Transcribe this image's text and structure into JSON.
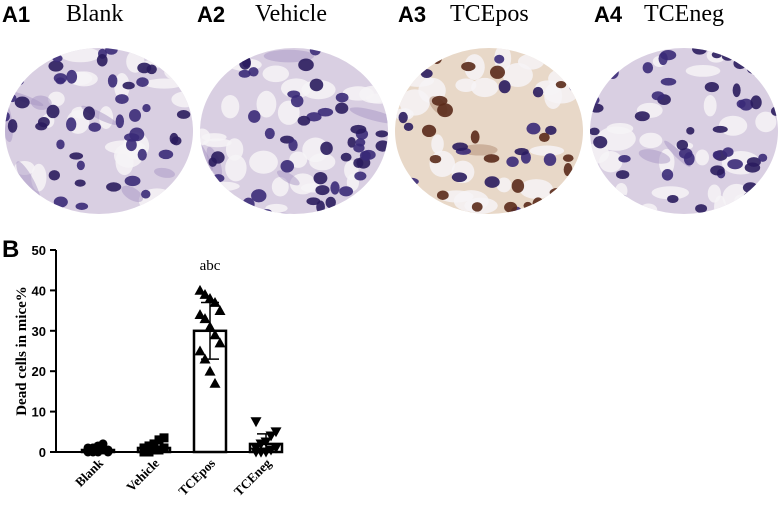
{
  "panels": [
    {
      "label": "A1",
      "title": "Blank",
      "stain": "light"
    },
    {
      "label": "A2",
      "title": "Vehicle",
      "stain": "light"
    },
    {
      "label": "A3",
      "title": "TCEpos",
      "stain": "brown"
    },
    {
      "label": "A4",
      "title": "TCEneg",
      "stain": "light"
    }
  ],
  "chart_label": "B",
  "colors": {
    "nucleus": "#3a2a78",
    "nucleus_dark": "#2a1c5e",
    "brown_stain": "#5a2a1a",
    "tissue": "#d9cfe2",
    "lumen": "#f6f3f6"
  },
  "chart_data": {
    "type": "bar",
    "categories": [
      "Blank",
      "Vehicle",
      "TCEpos",
      "TCEneg"
    ],
    "values": [
      0.5,
      1.0,
      30.0,
      2.0
    ],
    "errors": [
      0.6,
      1.2,
      7.0,
      2.5
    ],
    "ylabel": "Dead cells in mice%",
    "ylim": [
      0,
      50
    ],
    "yticks": [
      0,
      10,
      20,
      30,
      40,
      50
    ],
    "annotations": [
      {
        "category": "TCEpos",
        "text": "abc"
      }
    ],
    "points": {
      "Blank": [
        0,
        0,
        0,
        0.5,
        0.5,
        1,
        1,
        1.5,
        2,
        0,
        0.5,
        1
      ],
      "Vehicle": [
        0,
        0,
        0.5,
        0.5,
        1,
        1,
        1.5,
        2,
        3,
        3.5,
        0,
        1
      ],
      "TCEpos": [
        40,
        39,
        38,
        37,
        35,
        34,
        33,
        31,
        29,
        27,
        25,
        23,
        20,
        17
      ],
      "TCEneg": [
        0,
        0,
        0,
        0.5,
        1,
        1,
        2,
        2.5,
        4,
        5,
        7.5,
        0
      ]
    },
    "markers": {
      "Blank": "circle",
      "Vehicle": "square",
      "TCEpos": "triangle-up",
      "TCEneg": "triangle-down"
    },
    "grid": false
  }
}
